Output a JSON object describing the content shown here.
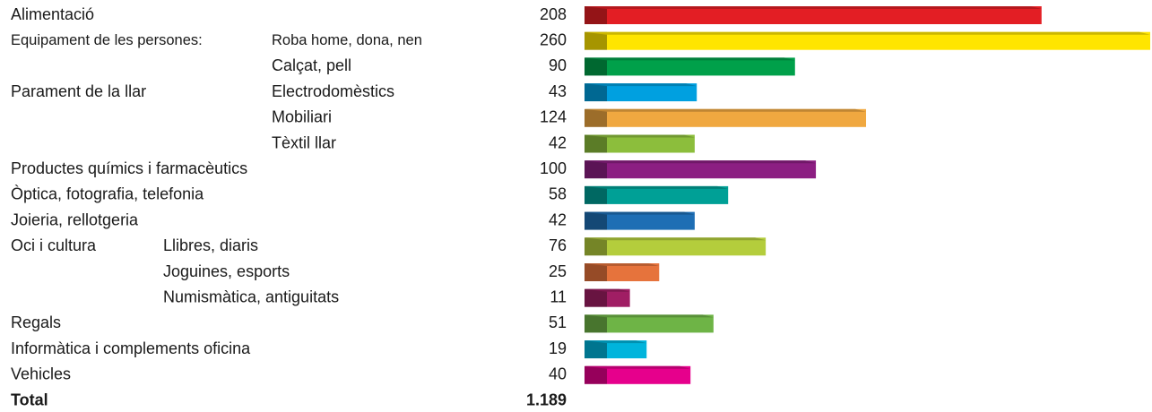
{
  "chart_data": {
    "type": "bar",
    "orientation": "horizontal",
    "categories": [
      {
        "label": "Alimentació"
      },
      {
        "group": "Equipament de les persones:",
        "label": "Roba home, dona, nen"
      },
      {
        "label": "Calçat, pell"
      },
      {
        "group": "Parament de la llar",
        "label": "Electrodomèstics"
      },
      {
        "label": "Mobiliari"
      },
      {
        "label": "Tèxtil llar"
      },
      {
        "label": "Productes químics i farmacèutics"
      },
      {
        "label": "Òptica, fotografia, telefonia"
      },
      {
        "label": "Joieria, rellotgeria"
      },
      {
        "group": "Oci i cultura",
        "label": "Llibres, diaris"
      },
      {
        "label": "Joguines, esports"
      },
      {
        "label": "Numismàtica, antiguitats"
      },
      {
        "label": "Regals"
      },
      {
        "label": "Informàtica i complements oficina"
      },
      {
        "label": "Vehicles"
      }
    ],
    "values": [
      208,
      260,
      90,
      43,
      124,
      42,
      100,
      58,
      42,
      76,
      25,
      11,
      51,
      19,
      40
    ],
    "colors": [
      "#e31e24",
      "#ffe500",
      "#00a04a",
      "#00a0e0",
      "#f0a840",
      "#8cbe3c",
      "#8c1e82",
      "#00a096",
      "#1e6eb4",
      "#b4cd3c",
      "#e6733c",
      "#a01e64",
      "#6eb446",
      "#00b4dc",
      "#e6008c"
    ],
    "xlim": [
      0,
      260
    ],
    "total": {
      "name": "Total",
      "value": 1189,
      "value_label": "1.189"
    }
  }
}
